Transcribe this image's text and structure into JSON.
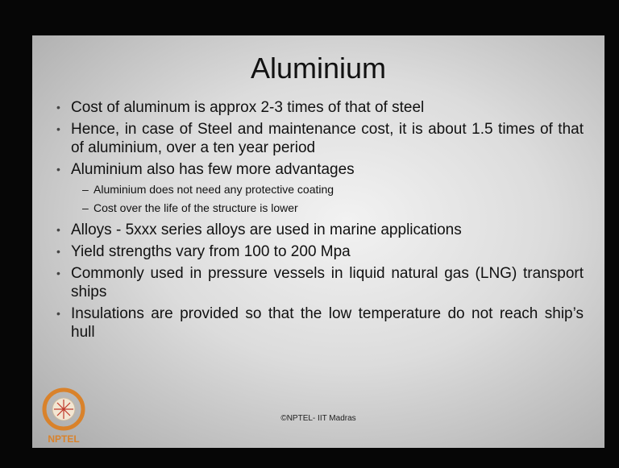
{
  "slide": {
    "title": "Aluminium",
    "bullets": [
      {
        "text": "Cost of aluminum is approx 2-3 times of that of steel"
      },
      {
        "text": "Hence, in case of Steel and maintenance cost, it is about 1.5 times of that of aluminium, over a ten year period"
      },
      {
        "text": "Aluminium also has few more advantages",
        "sub": [
          "Aluminium does not need any protective coating",
          "Cost over the life of the structure is lower"
        ]
      },
      {
        "text": "Alloys -  5xxx series alloys are used in marine applications"
      },
      {
        "text": "Yield strengths vary from 100 to 200 Mpa"
      },
      {
        "text": "Commonly used in pressure vessels in liquid natural gas (LNG) transport ships"
      },
      {
        "text": "Insulations are provided so that the low temperature do not reach ship’s hull"
      }
    ],
    "footer": "©NPTEL- IIT Madras",
    "logo": "NPTEL"
  }
}
